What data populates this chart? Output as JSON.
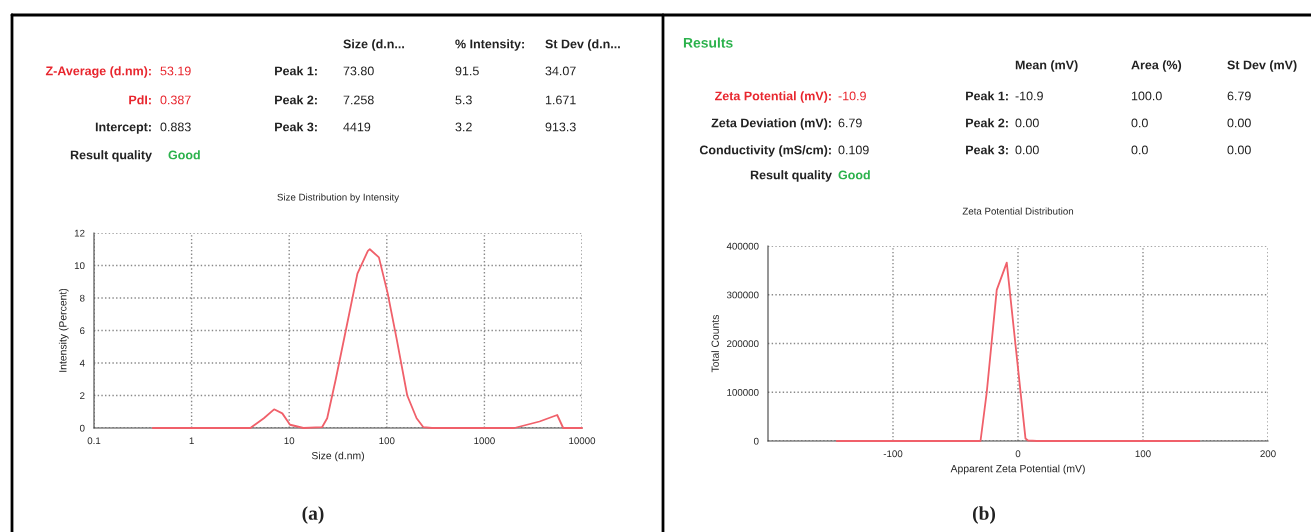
{
  "chart_data": [
    {
      "type": "line",
      "title": "Size Distribution by Intensity",
      "xlabel": "Size (d.nm)",
      "ylabel": "Intensity (Percent)",
      "log": "x",
      "grid": true,
      "series": [
        {
          "color": "#f0606a",
          "x": [
            0.4,
            1,
            2,
            4,
            5.5,
            7,
            8.5,
            10.2,
            14,
            21.7,
            24.5,
            30,
            38,
            50,
            64,
            67,
            83,
            102,
            126,
            162,
            202,
            237,
            290,
            1000,
            2028,
            3670,
            5570,
            6420,
            10000
          ],
          "values": [
            0,
            0,
            0,
            0,
            0.6,
            1.15,
            0.9,
            0.2,
            0,
            0.05,
            0.6,
            3.0,
            6,
            9.5,
            10.9,
            11.0,
            10.5,
            8.3,
            5.5,
            2.0,
            0.6,
            0.05,
            0,
            0,
            0,
            0.4,
            0.8,
            0,
            0
          ]
        }
      ],
      "xlim": [
        0.1,
        10000
      ],
      "ylim": [
        0,
        12
      ],
      "xticks": [
        0.1,
        1,
        10,
        100,
        1000,
        10000
      ],
      "yticks": [
        0,
        2,
        4,
        6,
        8,
        10,
        12
      ],
      "annotations": [
        "Z-Average (d.nm):",
        "53.19",
        "PdI:",
        "0.387",
        "Intercept:",
        "0.883",
        "Result quality",
        "Good",
        "Size (d.n...",
        "% Intensity:",
        "St Dev (d.n...",
        "Peak 1:",
        "73.80",
        "91.5",
        "34.07",
        "Peak 2:",
        "7.258",
        "5.3",
        "1.671",
        "Peak 3:",
        "4419",
        "3.2",
        "913.3",
        "(a)"
      ]
    },
    {
      "type": "line",
      "title": "Zeta Potential Distribution",
      "xlabel": "Apparent Zeta Potential (mV)",
      "ylabel": "Total Counts",
      "grid": true,
      "series": [
        {
          "color": "#f0606a",
          "x": [
            -145,
            -30,
            -25,
            -17,
            -9,
            6,
            8,
            15,
            145
          ],
          "values": [
            0,
            0,
            100000,
            310000,
            366000,
            5000,
            1000,
            0,
            0
          ]
        }
      ],
      "xlim": [
        -200,
        200
      ],
      "ylim": [
        0,
        400000
      ],
      "xticks": [
        -100,
        0,
        100,
        200
      ],
      "yticks": [
        0,
        100000,
        200000,
        300000,
        400000
      ],
      "annotations": [
        "Results",
        "Zeta Potential (mV):",
        "-10.9",
        "Zeta Deviation (mV):",
        "6.79",
        "Conductivity (mS/cm):",
        "0.109",
        "Result quality",
        "Good",
        "Mean (mV)",
        "Area (%)",
        "St Dev (mV)",
        "Peak 1:",
        "-10.9",
        "100.0",
        "6.79",
        "Peak 2:",
        "0.00",
        "0.0",
        "0.00",
        "Peak 3:",
        "0.00",
        "0.0",
        "0.00",
        "(b)"
      ]
    }
  ]
}
